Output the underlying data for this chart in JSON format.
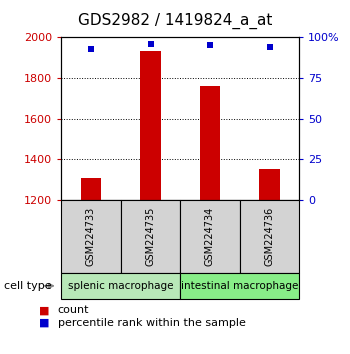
{
  "title": "GDS2982 / 1419824_a_at",
  "samples": [
    "GSM224733",
    "GSM224735",
    "GSM224734",
    "GSM224736"
  ],
  "counts": [
    1310,
    1930,
    1760,
    1350
  ],
  "percentiles": [
    93,
    96,
    95,
    94
  ],
  "ylim_left": [
    1200,
    2000
  ],
  "ylim_right": [
    0,
    100
  ],
  "left_ticks": [
    1200,
    1400,
    1600,
    1800,
    2000
  ],
  "right_ticks": [
    0,
    25,
    50,
    75,
    100
  ],
  "right_tick_labels": [
    "0",
    "25",
    "50",
    "75",
    "100%"
  ],
  "bar_color": "#cc0000",
  "dot_color": "#0000cc",
  "bar_width": 0.35,
  "groups": [
    {
      "label": "splenic macrophage",
      "indices": [
        0,
        1
      ],
      "color": "#b8e8b8"
    },
    {
      "label": "intestinal macrophage",
      "indices": [
        2,
        3
      ],
      "color": "#88ee88"
    }
  ],
  "cell_type_label": "cell type",
  "legend_count_label": "count",
  "legend_percentile_label": "percentile rank within the sample",
  "left_tick_color": "#cc0000",
  "right_tick_color": "#0000cc",
  "title_fontsize": 11,
  "axis_fontsize": 8,
  "sample_fontsize": 7,
  "group_label_fontsize": 7.5
}
